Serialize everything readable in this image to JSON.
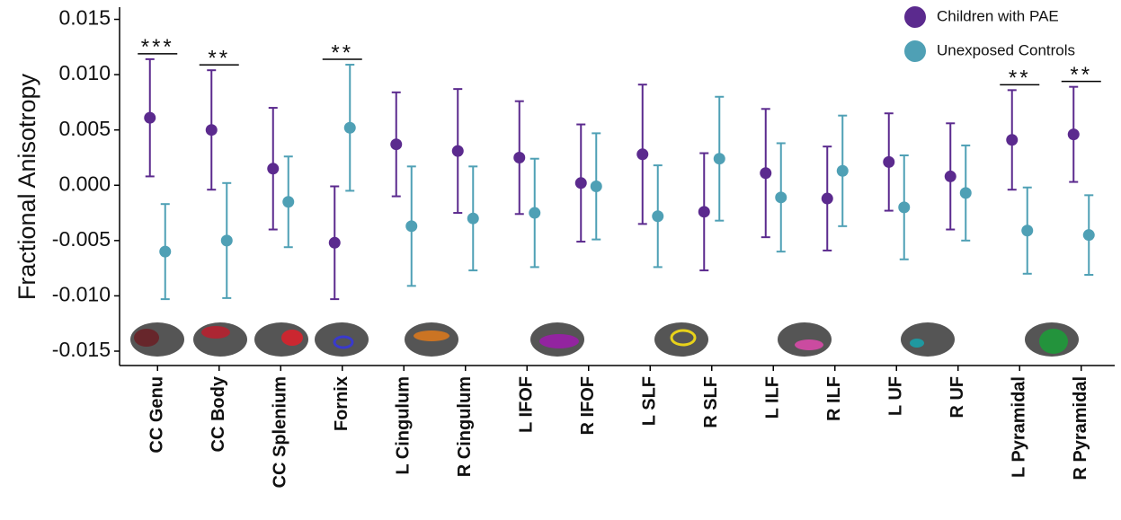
{
  "chart_data": {
    "type": "errorbar",
    "y_label": "Fractional Anisotropy",
    "categories": [
      "CC Genu",
      "CC Body",
      "CC Splenium",
      "Fornix",
      "L Cingulum",
      "R Cingulum",
      "L IFOF",
      "R IFOF",
      "L SLF",
      "R SLF",
      "L ILF",
      "R ILF",
      "L UF",
      "R UF",
      "L Pyramidal",
      "R Pyramidal"
    ],
    "series": [
      {
        "name": "Children with PAE",
        "color": "#5b2a8e",
        "values": [
          0.0061,
          0.005,
          0.0015,
          -0.0052,
          0.0037,
          0.0031,
          0.0025,
          0.0002,
          0.0028,
          -0.0024,
          0.0011,
          -0.0012,
          0.0021,
          0.0008,
          0.0041,
          0.0046
        ],
        "errors": [
          0.0053,
          0.0054,
          0.0055,
          0.0051,
          0.0047,
          0.0056,
          0.0051,
          0.0053,
          0.0063,
          0.0053,
          0.0058,
          0.0047,
          0.0044,
          0.0048,
          0.0045,
          0.0043
        ]
      },
      {
        "name": "Unexposed Controls",
        "color": "#4fa0b5",
        "values": [
          -0.006,
          -0.005,
          -0.0015,
          0.0052,
          -0.0037,
          -0.003,
          -0.0025,
          -0.0001,
          -0.0028,
          0.0024,
          -0.0011,
          0.0013,
          -0.002,
          -0.0007,
          -0.0041,
          -0.0045
        ],
        "errors": [
          0.0043,
          0.0052,
          0.0041,
          0.0057,
          0.0054,
          0.0047,
          0.0049,
          0.0048,
          0.0046,
          0.0056,
          0.0049,
          0.005,
          0.0047,
          0.0043,
          0.0039,
          0.0036
        ]
      }
    ],
    "significance": [
      "***",
      "**",
      null,
      "**",
      null,
      null,
      null,
      null,
      null,
      null,
      null,
      null,
      null,
      null,
      "**",
      "**"
    ],
    "ylim": [
      -0.0163,
      0.0161
    ],
    "yticks": [
      {
        "value": -0.015,
        "label": "-0.015"
      },
      {
        "value": -0.01,
        "label": "-0.010"
      },
      {
        "value": -0.005,
        "label": "-0.005"
      },
      {
        "value": 0,
        "label": "0.000"
      },
      {
        "value": 0.005,
        "label": "0.005"
      },
      {
        "value": 0.01,
        "label": "0.010"
      },
      {
        "value": 0.015,
        "label": "0.015"
      }
    ],
    "grid": false,
    "legend": "top-right"
  }
}
